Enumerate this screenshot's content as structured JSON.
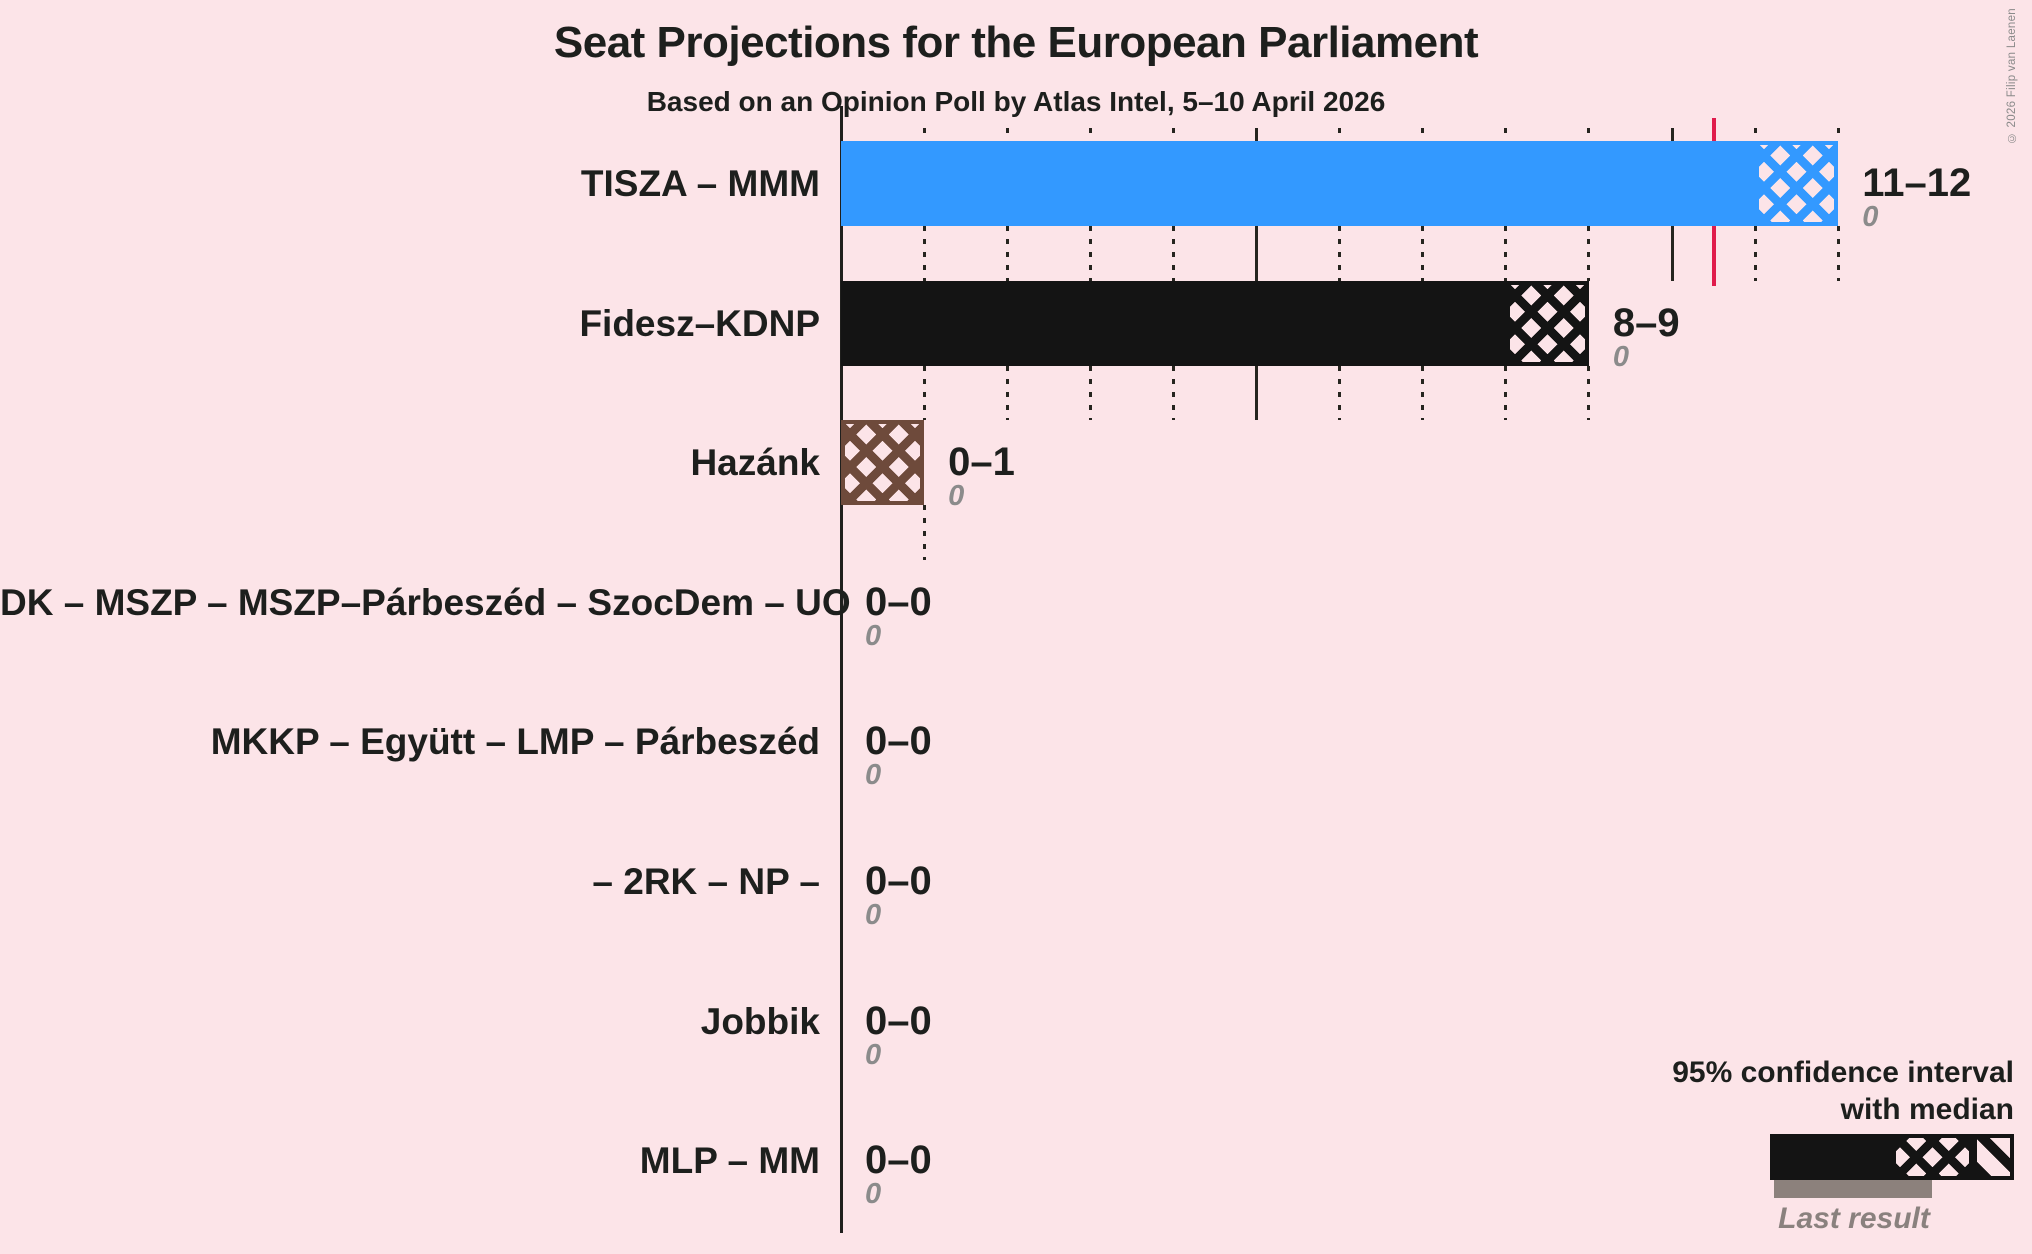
{
  "title": "Seat Projections for the European Parliament",
  "subtitle": "Based on an Opinion Poll by Atlas Intel, 5–10 April 2026",
  "copyright": "© 2026 Filip van Laenen",
  "legend": {
    "ci_line1": "95% confidence interval",
    "ci_line2": "with median",
    "last_result": "Last result"
  },
  "colors": {
    "background": "#fce4e8",
    "axis": "#1f1f1d",
    "majority_line": "#e01b4b",
    "text": "#1d1f1d",
    "muted_gray": "#8b8b8b",
    "last_result_bar": "#8c817c",
    "tisza_blue": "#3399ff",
    "fidesz_black": "#141414",
    "hazank_brown": "#6e4a3b"
  },
  "chart_data": {
    "type": "bar",
    "orientation": "horizontal",
    "title": "Seat Projections for the European Parliament",
    "subtitle": "Based on an Opinion Poll by Atlas Intel, 5–10 April 2026",
    "x_axis": {
      "min": 0,
      "tick_interval": 1,
      "solid_tick_every": 5,
      "majority_line": 10.5,
      "gridlines_visible_to": 12
    },
    "categories": [
      "TISZA – MMM",
      "Fidesz–KDNP",
      "Hazánk",
      "DK – MSZP – MSZP–Párbeszéd – SzocDem – UO",
      "MKKP – Együtt – LMP – Párbeszéd",
      "– 2RK – NP –",
      "Jobbik",
      "MLP – MM"
    ],
    "series": [
      {
        "party": "TISZA – MMM",
        "ci_low": 11,
        "ci_high": 12,
        "ci_label": "11–12",
        "last_result": 0,
        "last_result_label": "0",
        "color": "#3399ff"
      },
      {
        "party": "Fidesz–KDNP",
        "ci_low": 8,
        "ci_high": 9,
        "ci_label": "8–9",
        "last_result": 0,
        "last_result_label": "0",
        "color": "#141414"
      },
      {
        "party": "Hazánk",
        "ci_low": 0,
        "ci_high": 1,
        "ci_label": "0–1",
        "last_result": 0,
        "last_result_label": "0",
        "color": "#6e4a3b"
      },
      {
        "party": "DK – MSZP – MSZP–Párbeszéd – SzocDem – UO",
        "ci_low": 0,
        "ci_high": 0,
        "ci_label": "0–0",
        "last_result": 0,
        "last_result_label": "0",
        "color": "#141414"
      },
      {
        "party": "MKKP – Együtt – LMP – Párbeszéd",
        "ci_low": 0,
        "ci_high": 0,
        "ci_label": "0–0",
        "last_result": 0,
        "last_result_label": "0",
        "color": "#141414"
      },
      {
        "party": "– 2RK – NP –",
        "ci_low": 0,
        "ci_high": 0,
        "ci_label": "0–0",
        "last_result": 0,
        "last_result_label": "0",
        "color": "#141414"
      },
      {
        "party": "Jobbik",
        "ci_low": 0,
        "ci_high": 0,
        "ci_label": "0–0",
        "last_result": 0,
        "last_result_label": "0",
        "color": "#141414"
      },
      {
        "party": "MLP – MM",
        "ci_low": 0,
        "ci_high": 0,
        "ci_label": "0–0",
        "last_result": 0,
        "last_result_label": "0",
        "color": "#141414"
      }
    ]
  }
}
